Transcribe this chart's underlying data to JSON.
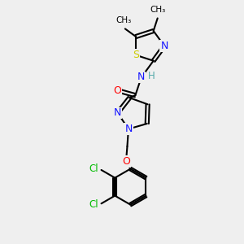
{
  "background_color": "#efefef",
  "figsize": [
    3.0,
    3.0
  ],
  "dpi": 100,
  "colors": {
    "N": "#1515ff",
    "O": "#ff0000",
    "S": "#cccc00",
    "Cl": "#00bb00",
    "NH": "#1515ff",
    "H": "#55aaaa",
    "C": "#000000"
  }
}
